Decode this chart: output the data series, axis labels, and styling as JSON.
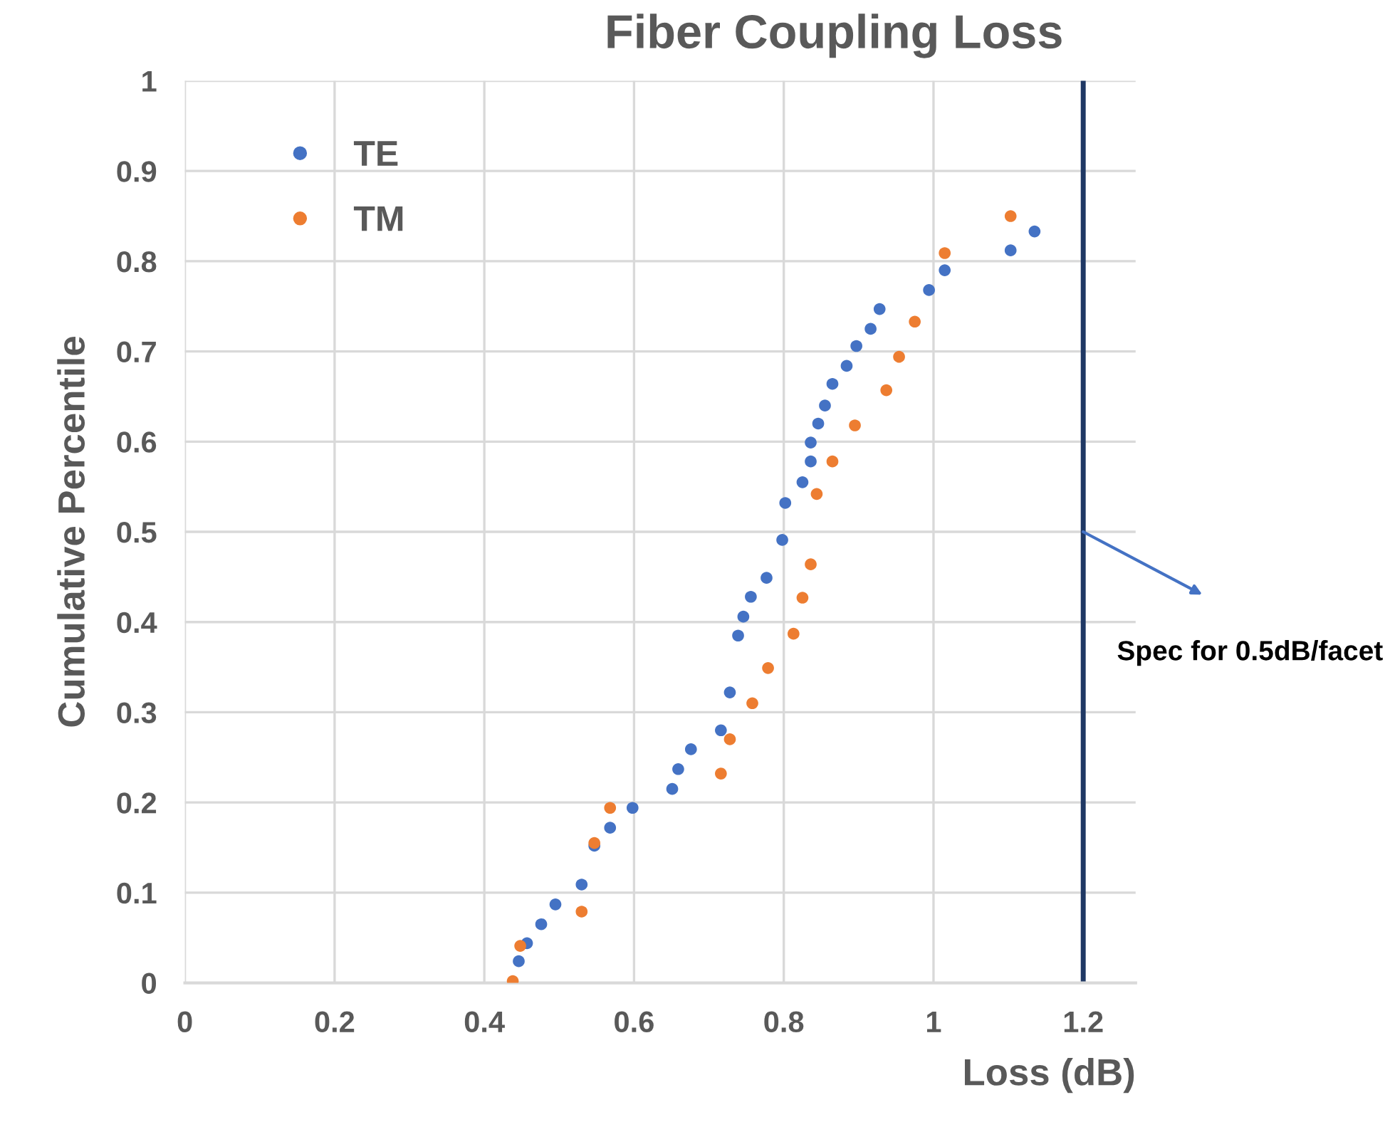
{
  "chart_data": {
    "type": "scatter",
    "title": "Fiber Coupling Loss",
    "xlabel": "Loss (dB)",
    "ylabel": "Cumulative Percentile",
    "xlim": [
      0,
      1.27
    ],
    "xticks": [
      0,
      0.2,
      0.4,
      0.6,
      0.8,
      1,
      1.2
    ],
    "ylim": [
      0,
      1
    ],
    "yticks": [
      0,
      0.1,
      0.2,
      0.3,
      0.4,
      0.5,
      0.6,
      0.7,
      0.8,
      0.9,
      1
    ],
    "grid": true,
    "legend": "top left",
    "marker": "circle",
    "series": [
      {
        "name": "TE",
        "color": "#4472c4",
        "x": [
          0.446,
          0.457,
          0.476,
          0.495,
          0.53,
          0.547,
          0.568,
          0.598,
          0.651,
          0.659,
          0.676,
          0.716,
          0.728,
          0.739,
          0.746,
          0.756,
          0.777,
          0.798,
          0.802,
          0.825,
          0.836,
          0.836,
          0.846,
          0.855,
          0.865,
          0.884,
          0.897,
          0.916,
          0.928,
          0.994,
          1.015,
          1.103,
          1.135
        ],
        "values": [
          0.024,
          0.044,
          0.065,
          0.087,
          0.109,
          0.152,
          0.172,
          0.194,
          0.215,
          0.237,
          0.259,
          0.28,
          0.322,
          0.385,
          0.406,
          0.428,
          0.449,
          0.491,
          0.532,
          0.555,
          0.578,
          0.599,
          0.62,
          0.64,
          0.664,
          0.684,
          0.706,
          0.725,
          0.747,
          0.768,
          0.79,
          0.812,
          0.833
        ]
      },
      {
        "name": "TM",
        "color": "#ed7d31",
        "x": [
          0.438,
          0.448,
          0.53,
          0.547,
          0.568,
          0.716,
          0.728,
          0.758,
          0.779,
          0.813,
          0.825,
          0.836,
          0.844,
          0.865,
          0.895,
          0.937,
          0.954,
          0.975,
          1.015,
          1.103
        ],
        "values": [
          0.002,
          0.041,
          0.079,
          0.155,
          0.194,
          0.232,
          0.27,
          0.31,
          0.349,
          0.387,
          0.427,
          0.464,
          0.542,
          0.578,
          0.618,
          0.657,
          0.694,
          0.733,
          0.809,
          0.85
        ]
      }
    ],
    "ref_lines": [
      {
        "axis": "x",
        "value": 1.2,
        "label": "Spec for 0.5dB/facet",
        "color": "#1f3864",
        "line_style": "solid"
      }
    ]
  }
}
